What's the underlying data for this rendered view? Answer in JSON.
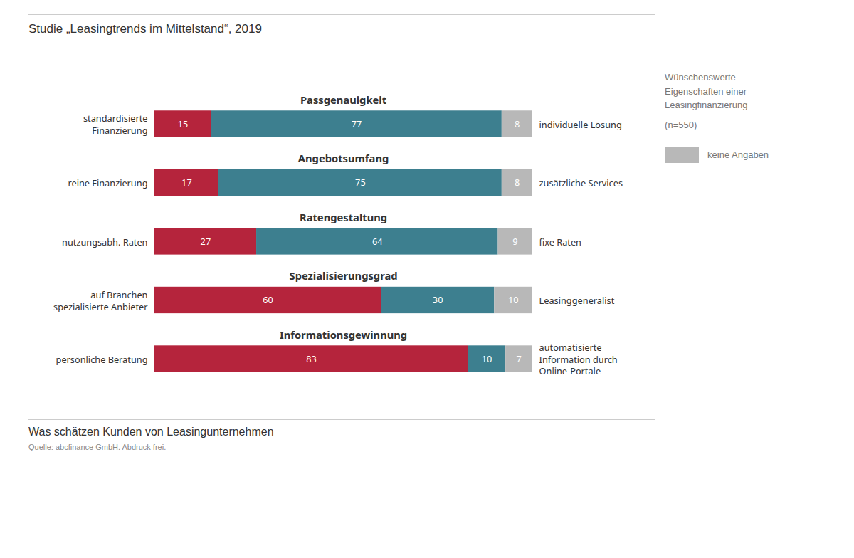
{
  "chart_data": {
    "type": "bar",
    "orientation": "horizontal",
    "stacked": true,
    "data_labels": true,
    "tick_labels": false,
    "grid": false,
    "legend": "right",
    "title": "Studie „Leasingtrends im Mittelstand“, 2019",
    "subtitle": "Was schätzen Kunden von Leasingunternehmen",
    "source": "Quelle: abcfinance GmbH. Abdruck frei.",
    "legend_title": [
      "Wünschenswerte",
      "Eigenschaften einer",
      "Leasingfinanzierung"
    ],
    "legend_note": "(n=550)",
    "categories": [
      "Passgenauigkeit",
      "Angebotsumfang",
      "Ratengestaltung",
      "Spezialisierungsgrad",
      "Informationsgewinnung"
    ],
    "left_labels": [
      "standardisierte\nFinanzierung",
      "reine Finanzierung",
      "nutzungsabh. Raten",
      "auf Branchen\nspezialisierte Anbieter",
      "persönliche Beratung"
    ],
    "right_labels": [
      "individuelle Lösung",
      "zusätzliche Services",
      "fixe Raten",
      "Leasinggeneralist",
      "automatisierte\nInformation durch\nOnline-Portale"
    ],
    "xlim": [
      0,
      100
    ],
    "series": [
      {
        "color": "#b5243c",
        "values": [
          15,
          17,
          27,
          60,
          83
        ]
      },
      {
        "color": "#3d7f8f",
        "values": [
          77,
          75,
          64,
          30,
          10
        ]
      },
      {
        "name": "keine Angaben",
        "color": "#b8b8b8",
        "values": [
          8,
          8,
          9,
          10,
          7
        ]
      }
    ]
  }
}
